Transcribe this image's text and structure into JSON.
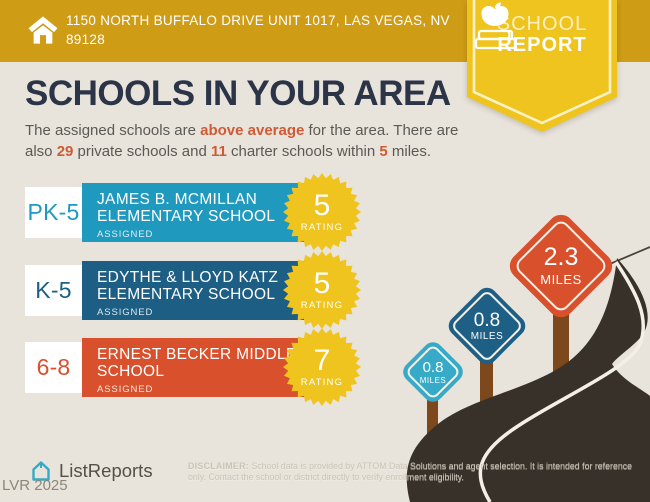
{
  "header": {
    "address_line1": "1150 NORTH BUFFALO DRIVE UNIT 1017, LAS VEGAS, NV",
    "address_line2": "89128",
    "badge": {
      "line1": "SCHOOL",
      "line2": "REPORT"
    }
  },
  "main": {
    "title": "SCHOOLS IN YOUR AREA",
    "intro_segments": [
      {
        "text": "The assigned schools are ",
        "highlight": false
      },
      {
        "text": "above average",
        "highlight": true
      },
      {
        "text": " for the area. There are also ",
        "highlight": false
      },
      {
        "text": "29",
        "highlight": true
      },
      {
        "text": " private schools and ",
        "highlight": false
      },
      {
        "text": "11",
        "highlight": true
      },
      {
        "text": " charter schools within ",
        "highlight": false
      },
      {
        "text": "5",
        "highlight": true
      },
      {
        "text": " miles.",
        "highlight": false
      }
    ]
  },
  "schools": [
    {
      "grades": "PK-5",
      "name": "JAMES B. MCMILLAN ELEMENTARY SCHOOL",
      "status": "ASSIGNED",
      "rating": "5",
      "rating_label": "RATING",
      "color": "#2099be"
    },
    {
      "grades": "K-5",
      "name": "EDYTHE & LLOYD KATZ ELEMENTARY SCHOOL",
      "status": "ASSIGNED",
      "rating": "5",
      "rating_label": "RATING",
      "color": "#1d5e84"
    },
    {
      "grades": "6-8",
      "name": "ERNEST BECKER MIDDLE SCHOOL",
      "status": "ASSIGNED",
      "rating": "7",
      "rating_label": "RATING",
      "color": "#d8502c"
    }
  ],
  "signs": [
    {
      "distance": "0.8",
      "unit": "MILES",
      "color": "#36aac6"
    },
    {
      "distance": "0.8",
      "unit": "MILES",
      "color": "#1e5f85"
    },
    {
      "distance": "2.3",
      "unit": "MILES",
      "color": "#d8502c"
    }
  ],
  "footer": {
    "logo_text": "ListReports",
    "watermark": "LVR 2025",
    "disclaimer_label": "DISCLAIMER:",
    "disclaimer_text": " School data is provided by ATTOM Data Solutions and agent selection. It is intended for reference only. Contact the school or district directly to verify enrollment eligibility."
  },
  "colors": {
    "background": "#e9e4db",
    "header_gold": "#cf9c16",
    "badge_yellow": "#f0c41e",
    "badge_border": "#fbf2c8",
    "title_navy": "#2b3547",
    "body_text": "#5a5954",
    "highlight": "#cf5a36",
    "rating_yellow": "#f0c41e",
    "road": "#37312a",
    "road_line": "#f3efe6",
    "post_brown": "#7c481c"
  }
}
